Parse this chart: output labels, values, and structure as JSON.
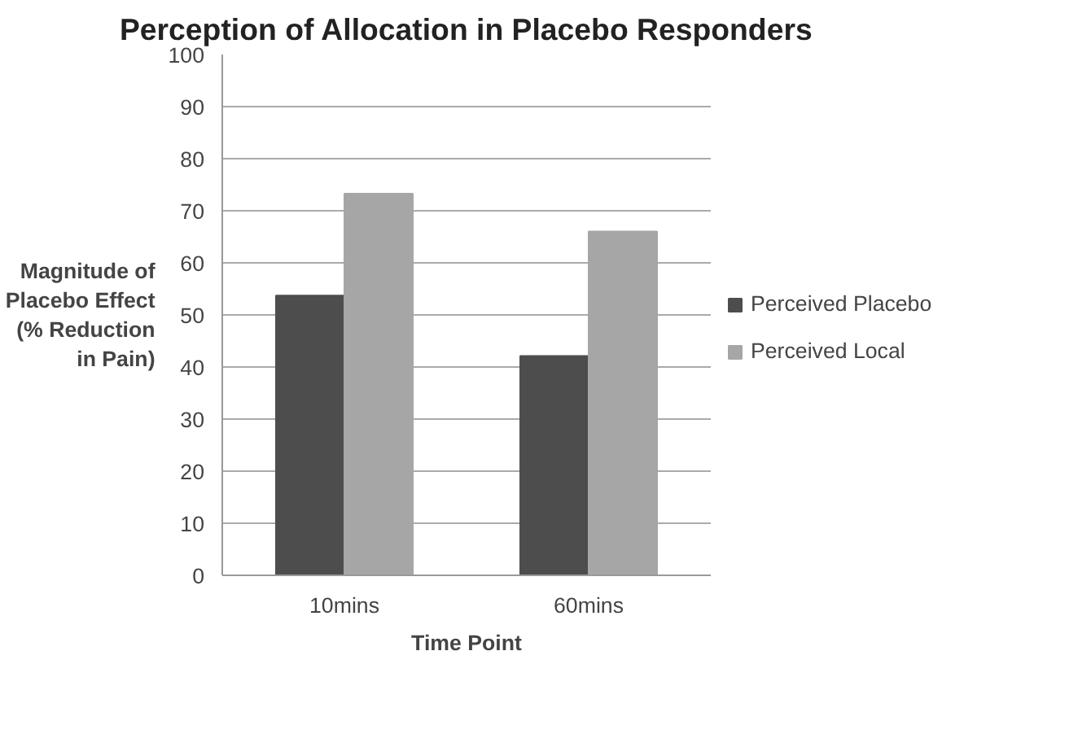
{
  "chart_data": {
    "type": "bar",
    "title": "Perception of Allocation in Placebo Responders",
    "xlabel": "Time Point",
    "ylabel": "Magnitude of Placebo Effect (% Reduction in Pain)",
    "categories": [
      "10mins",
      "60mins"
    ],
    "series": [
      {
        "name": "Perceived Placebo",
        "color": "#4d4d4d",
        "values": [
          53.7,
          42.1
        ]
      },
      {
        "name": "Perceived Local",
        "color": "#a6a6a6",
        "values": [
          73.3,
          66.0
        ]
      }
    ],
    "ylim": [
      0,
      100
    ],
    "yticks": [
      0,
      10,
      20,
      30,
      40,
      50,
      60,
      70,
      80,
      90,
      100
    ],
    "grid": "y",
    "legend": "right"
  }
}
